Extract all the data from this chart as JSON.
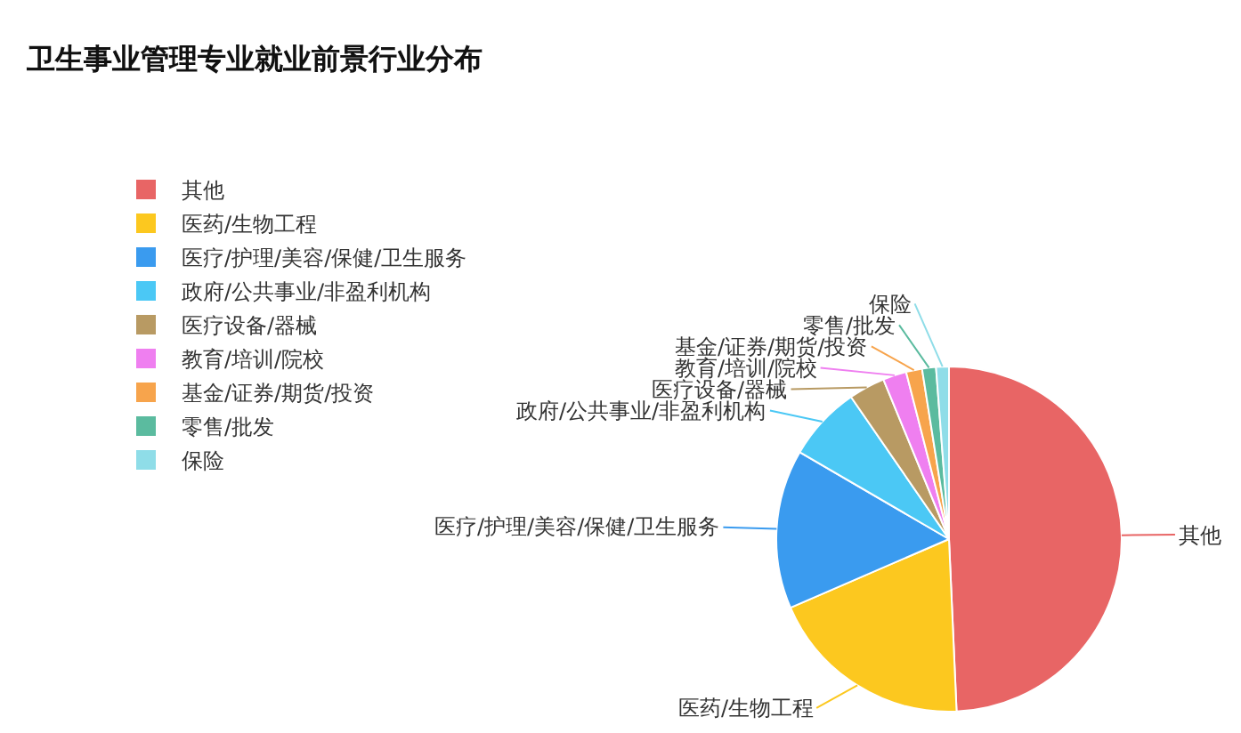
{
  "chart_data": {
    "type": "pie",
    "title": "卫生事业管理专业就业前景行业分布",
    "categories": [
      "其他",
      "医药/生物工程",
      "医疗/护理/美容/保健/卫生服务",
      "政府/公共事业/非盈利机构",
      "医疗设备/器械",
      "教育/培训/院校",
      "基金/证券/期货/投资",
      "零售/批发",
      "保险"
    ],
    "values": [
      49.3,
      19.2,
      14.9,
      7.0,
      3.4,
      2.2,
      1.5,
      1.3,
      1.2
    ],
    "colors": [
      "#e86565",
      "#fcc81f",
      "#3a9bef",
      "#4bc8f5",
      "#b89a63",
      "#ef7ff0",
      "#f7a44c",
      "#5bbb9f",
      "#8fdde8"
    ],
    "legend": "left"
  }
}
